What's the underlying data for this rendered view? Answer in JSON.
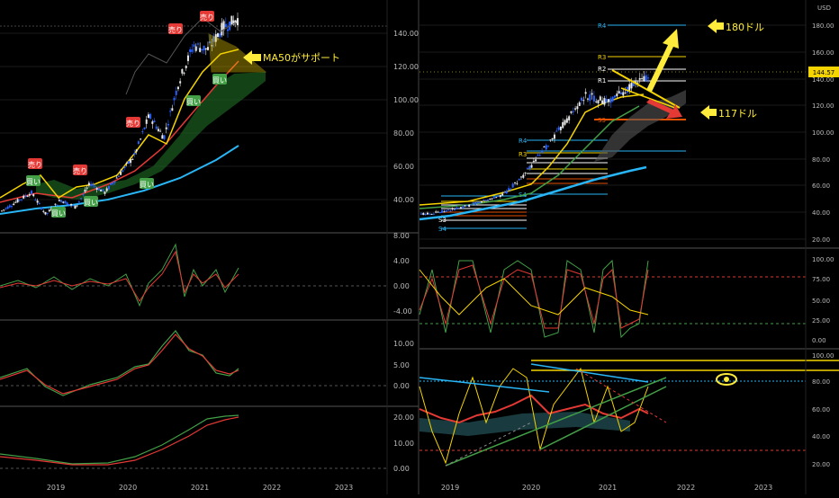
{
  "currency": "USD",
  "price_tag": "144.57",
  "x_axis": [
    "2019",
    "2020",
    "2021",
    "2022",
    "2023"
  ],
  "annotations": {
    "sell": "売り",
    "buy": "買い",
    "ma50_support": "MA50がサポート",
    "target_up": "180ドル",
    "target_down": "117ドル"
  },
  "pivot_labels": [
    "R4",
    "R3",
    "R2",
    "R1",
    "P",
    "S1",
    "S2",
    "S3",
    "S4"
  ],
  "colors": {
    "candle_up": "#e8e8e8",
    "candle_down": "#2962ff",
    "ma_fast": "#f5d400",
    "ma_mid": "#e53935",
    "ma_long": "#29b6f6",
    "cloud": "#1b5e20",
    "osc_green": "#43a047",
    "osc_red": "#e53935",
    "arrow": "#ffeb3b"
  },
  "chart_data": [
    {
      "type": "line",
      "panel": "left-price",
      "x_ticks": [
        "2019",
        "2020",
        "2021",
        "2022",
        "2023"
      ],
      "y_ticks": [
        "140.00",
        "120.00",
        "100.00",
        "80.00",
        "60.00",
        "40.00"
      ],
      "ylim": [
        30,
        150
      ],
      "series": [
        {
          "values": [
            40,
            45,
            50,
            38,
            46,
            42,
            55,
            50,
            60,
            70,
            92,
            80,
            110,
            130,
            128,
            140,
            144.57
          ]
        },
        {
          "values": [
            35,
            37,
            39,
            40,
            42,
            44,
            47,
            52,
            58,
            66,
            76,
            86,
            95,
            105,
            112,
            118,
            122
          ]
        },
        {
          "values": [
            32,
            33,
            35,
            37,
            39,
            41,
            43,
            46,
            50,
            56,
            64,
            72,
            80,
            88,
            95,
            100,
            104
          ]
        },
        {
          "values": [
            30,
            31,
            32,
            33,
            34,
            35,
            36,
            37,
            39,
            41,
            44,
            47,
            50,
            53,
            57,
            61,
            65
          ]
        }
      ]
    },
    {
      "type": "line",
      "panel": "left-osc-1",
      "y_ticks": [
        "8.00",
        "4.00",
        "0.00",
        "-4.00"
      ],
      "ylim": [
        -6,
        8
      ]
    },
    {
      "type": "line",
      "panel": "left-osc-2",
      "y_ticks": [
        "10.00",
        "5.00",
        "0.00"
      ],
      "ylim": [
        -2,
        14
      ]
    },
    {
      "type": "line",
      "panel": "left-osc-3",
      "y_ticks": [
        "20.00",
        "10.00",
        "0.00"
      ],
      "ylim": [
        -2,
        24
      ]
    },
    {
      "type": "line",
      "panel": "right-price",
      "x_ticks": [
        "2019",
        "2020",
        "2021",
        "2022",
        "2023"
      ],
      "y_ticks": [
        "180.00",
        "160.00",
        "140.00",
        "120.00",
        "100.00",
        "80.00",
        "60.00",
        "40.00",
        "20.00"
      ],
      "ylim": [
        15,
        190
      ],
      "series": [
        {
          "values": [
            40,
            42,
            45,
            50,
            55,
            70,
            90,
            110,
            130,
            125,
            135,
            144.57
          ]
        },
        {
          "values": [
            33,
            35,
            37,
            40,
            44,
            50,
            58,
            66,
            74,
            80,
            86,
            90
          ]
        }
      ]
    },
    {
      "type": "line",
      "panel": "right-osc-1",
      "y_ticks": [
        "100.00",
        "75.00",
        "50.00",
        "25.00",
        "0.00"
      ],
      "ylim": [
        0,
        100
      ]
    },
    {
      "type": "line",
      "panel": "right-osc-2",
      "y_ticks": [
        "100.00",
        "80.00",
        "60.00",
        "40.00",
        "20.00"
      ],
      "ylim": [
        15,
        100
      ]
    }
  ]
}
